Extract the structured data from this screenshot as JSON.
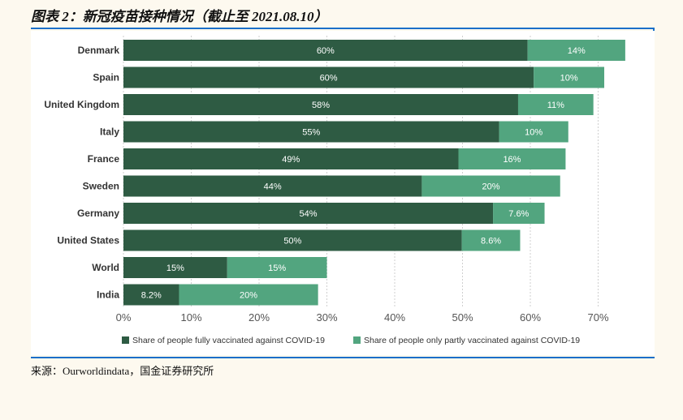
{
  "report": {
    "title": "图表 2：新冠疫苗接种情况（截止至 2021.08.10）",
    "source": "来源：Ourworldindata，国金证券研究所"
  },
  "colors": {
    "fully": "#2e5b43",
    "partly": "#52a57f",
    "grid": "#cfcfcf",
    "axis_text": "#555555",
    "category_text": "#333333"
  },
  "chart_data": {
    "type": "bar",
    "orientation": "horizontal",
    "stacked": true,
    "categories": [
      "Denmark",
      "Spain",
      "United Kingdom",
      "Italy",
      "France",
      "Sweden",
      "Germany",
      "United States",
      "World",
      "India"
    ],
    "series": [
      {
        "name": "Share of people fully vaccinated against COVID-19",
        "values": [
          59.6,
          60.5,
          58.2,
          55.4,
          49.4,
          44.0,
          54.5,
          49.9,
          15.3,
          8.2
        ],
        "labels": [
          "60%",
          "60%",
          "58%",
          "55%",
          "49%",
          "44%",
          "54%",
          "50%",
          "15%",
          "8.2%"
        ]
      },
      {
        "name": "Share of people only partly vaccinated against COVID-19",
        "values": [
          14.4,
          10.4,
          11.1,
          10.2,
          15.8,
          20.4,
          7.6,
          8.6,
          14.7,
          20.5
        ],
        "labels": [
          "14%",
          "10%",
          "11%",
          "10%",
          "16%",
          "20%",
          "7.6%",
          "8.6%",
          "15%",
          "20%"
        ]
      }
    ],
    "x_ticks": [
      "0%",
      "10%",
      "20%",
      "30%",
      "40%",
      "50%",
      "60%",
      "70%"
    ],
    "xlim": [
      0,
      74
    ],
    "grid": true,
    "legend_position": "bottom"
  }
}
